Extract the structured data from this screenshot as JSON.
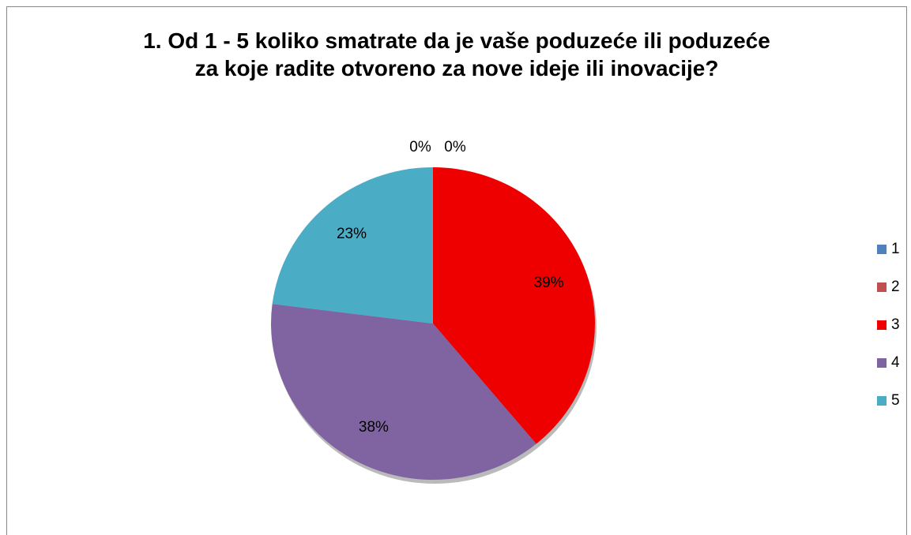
{
  "chart_data": {
    "type": "pie",
    "title": "1. Od 1 - 5 koliko smatrate da je vaše poduzeće ili poduzeće za koje radite otvoreno za nove ideje ili inovacije?",
    "categories": [
      "1",
      "2",
      "3",
      "4",
      "5"
    ],
    "values": [
      0,
      0,
      39,
      38,
      23
    ],
    "value_labels": [
      "0%",
      "0%",
      "39%",
      "38%",
      "23%"
    ],
    "colors": [
      "#4f81bd",
      "#c0504d",
      "#ee0000",
      "#8064a2",
      "#4bacc6"
    ],
    "legend": "right"
  }
}
